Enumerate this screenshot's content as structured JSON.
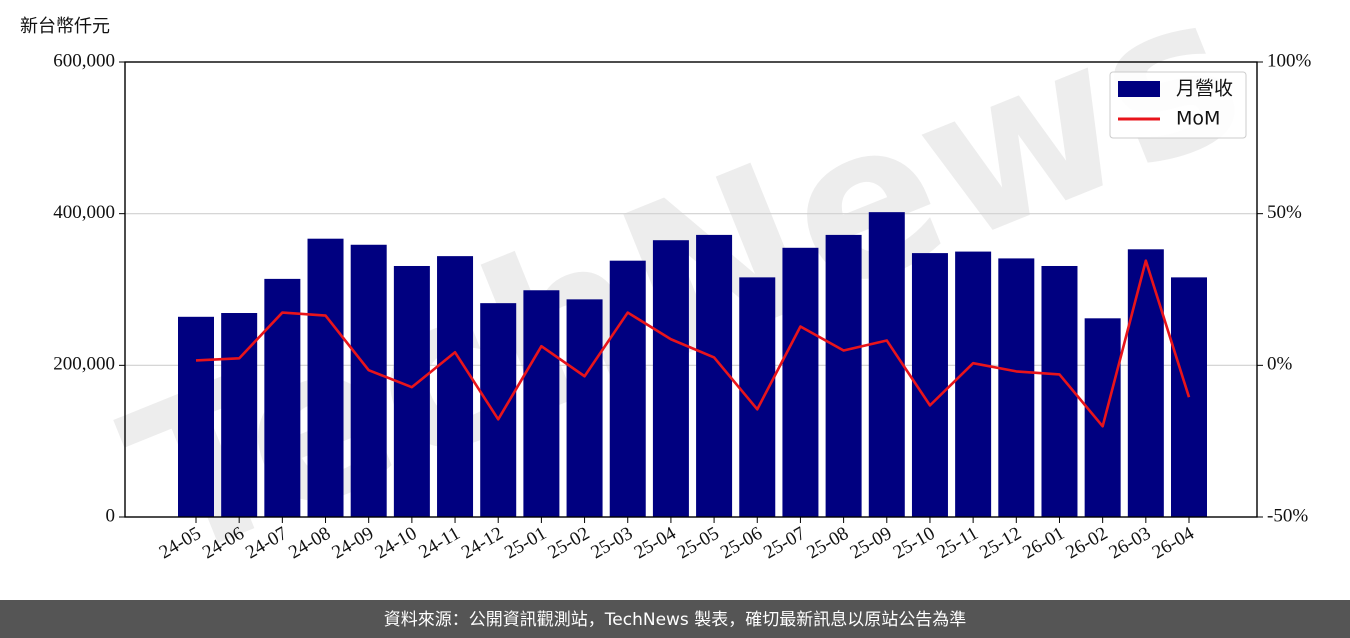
{
  "chart_data": {
    "type": "bar",
    "y_unit_label": "新台幣仟元",
    "watermark": "TechNews",
    "footer": "資料來源：公開資訊觀測站，TechNews 製表，確切最新訊息以原站公告為準",
    "categories": [
      "24-05",
      "24-06",
      "24-07",
      "24-08",
      "24-09",
      "24-10",
      "24-11",
      "24-12",
      "25-01",
      "25-02",
      "25-03",
      "25-04",
      "25-05",
      "25-06",
      "25-07",
      "25-08",
      "25-09",
      "25-10",
      "25-11",
      "25-12",
      "26-01",
      "26-02",
      "26-03",
      "26-04"
    ],
    "series": [
      {
        "name": "月營收",
        "type": "bar",
        "color": "#000080",
        "values": [
          264000,
          269000,
          314000,
          367000,
          359000,
          331000,
          344000,
          282000,
          299000,
          287000,
          338000,
          365000,
          372000,
          316000,
          355000,
          372000,
          402000,
          348000,
          350000,
          341000,
          331000,
          262000,
          353000,
          316000
        ]
      },
      {
        "name": "MoM",
        "type": "line",
        "axis": "y2",
        "color": "#e8141b",
        "values": [
          1.6,
          2.3,
          17.4,
          16.4,
          -1.6,
          -7.2,
          4.3,
          -17.8,
          6.3,
          -3.6,
          17.4,
          8.6,
          2.6,
          -14.5,
          12.8,
          4.9,
          8.2,
          -13.2,
          0.7,
          -2.0,
          -3.0,
          -20.1,
          34.5,
          -10.5
        ]
      }
    ],
    "ylim": [
      0,
      600000
    ],
    "yticks": [
      0,
      {
        "value": 200000,
        "label": "200,000"
      },
      {
        "value": 400000,
        "label": "400,000"
      },
      {
        "value": 600000,
        "label": "600,000"
      }
    ],
    "y2lim": [
      -50,
      100
    ],
    "y2ticks": [
      {
        "value": -50,
        "label": "-50%"
      },
      {
        "value": 0,
        "label": "0%"
      },
      {
        "value": 50,
        "label": "50%"
      },
      {
        "value": 100,
        "label": "100%"
      }
    ],
    "grid": true,
    "legend": "upper right"
  }
}
